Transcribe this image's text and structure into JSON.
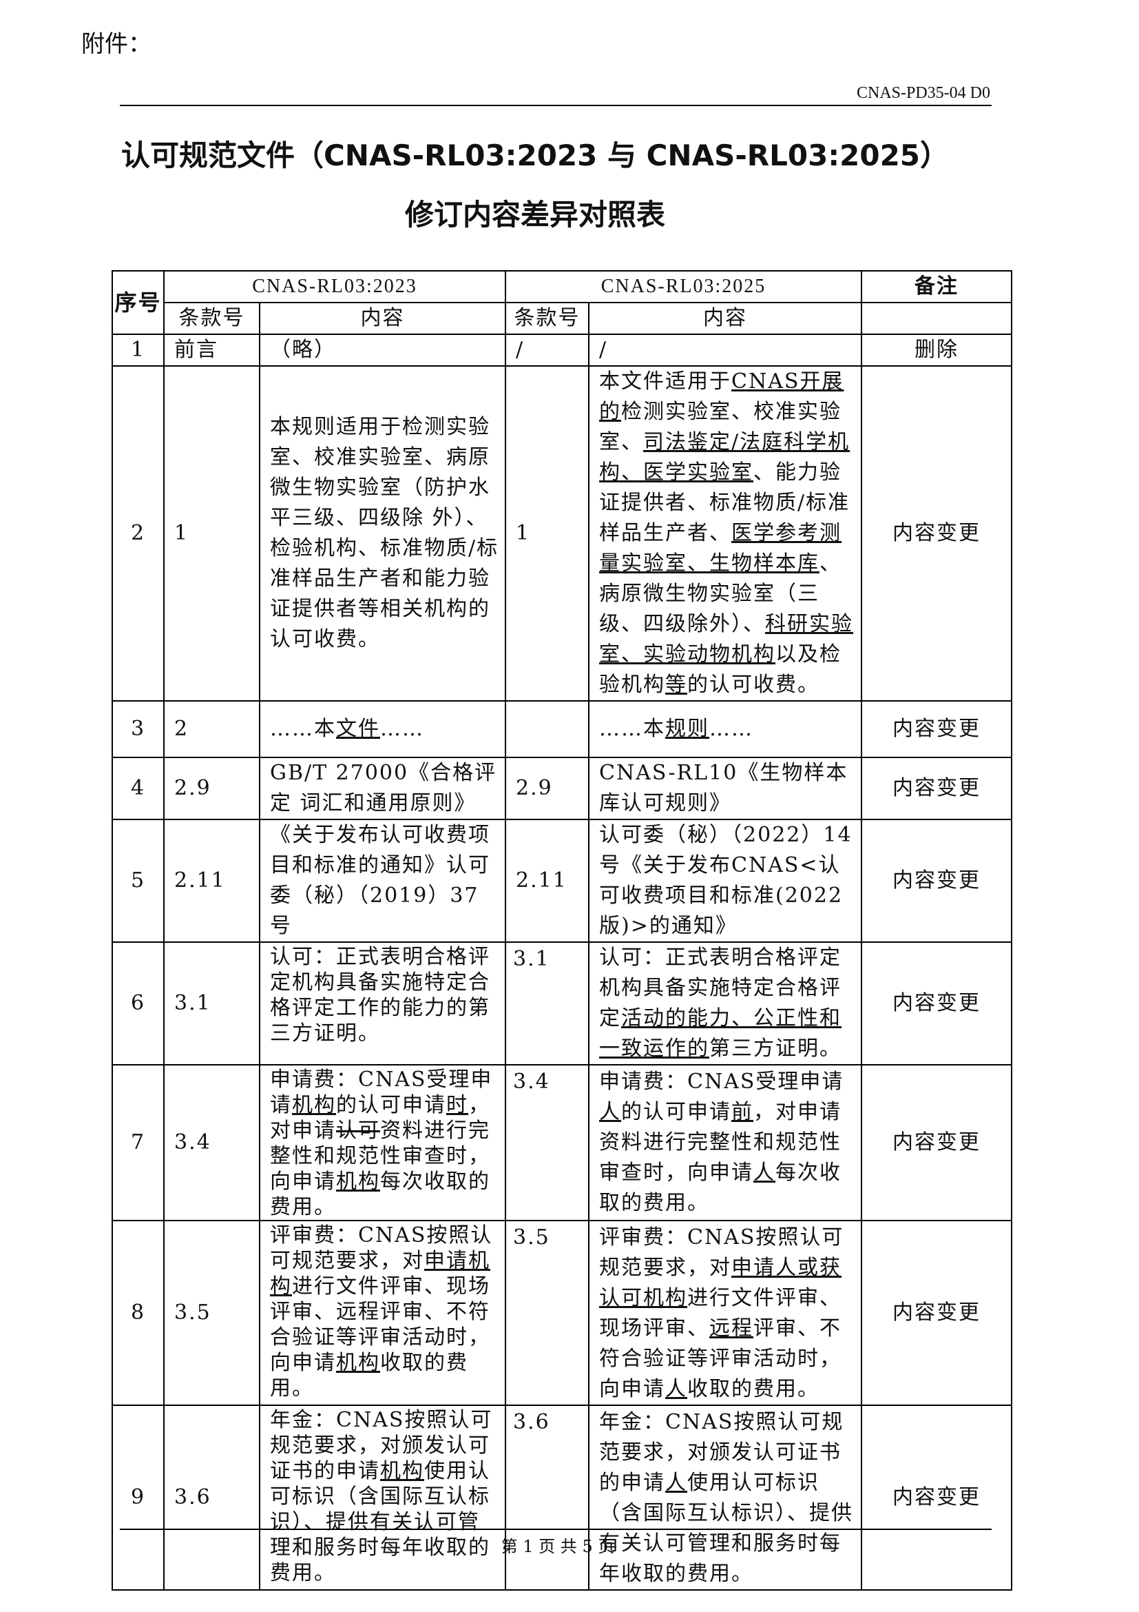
{
  "header": {
    "attachment_label": "附件：",
    "doc_id": "CNAS-PD35-04 D0"
  },
  "title": {
    "line1": "认可规范文件（CNAS-RL03:2023 与 CNAS-RL03:2025）",
    "line2": "修订内容差异对照表"
  },
  "table": {
    "headers": {
      "seq": "序号",
      "old_version": "CNAS-RL03:2023",
      "new_version": "CNAS-RL03:2025",
      "remark": "备注",
      "clause": "条款号",
      "content": "内容"
    },
    "rows": [
      {
        "seq": "1",
        "old_clause": "前言",
        "old": [
          {
            "t": "（略）"
          }
        ],
        "new_clause": "/",
        "new": [
          {
            "t": "/"
          }
        ],
        "remark": "删除"
      },
      {
        "seq": "2",
        "old_clause": "1",
        "old": [
          {
            "t": "本规则适用于检测实验室、校准实验室、病原微生物实验室（防护水平三级、四级除 外）、检验机构、标准物质/标准样品生产者和能力验证提供者等相关机构的认可收费。"
          }
        ],
        "new_clause": "1",
        "new": [
          {
            "t": "本文件适用于"
          },
          {
            "t": "CNAS开展的",
            "u": true
          },
          {
            "t": "检测实验室、校准实验室、"
          },
          {
            "t": "司法鉴定/法庭科学机构、医学实验室",
            "u": true
          },
          {
            "t": "、能力验证提供者、标准物质/标准样品生产者、"
          },
          {
            "t": "医学参考测量实验室、生物样本库",
            "u": true
          },
          {
            "t": "、病原微生物实验室（三级、四级除外）、"
          },
          {
            "t": "科研实验室、实验动物机构",
            "u": true
          },
          {
            "t": "以及检验机构"
          },
          {
            "t": "等",
            "u": true
          },
          {
            "t": "的认可收费。"
          }
        ],
        "remark": "内容变更"
      },
      {
        "seq": "3",
        "old_clause": "2",
        "old": [
          {
            "t": "……本"
          },
          {
            "t": "文件",
            "u": true
          },
          {
            "t": "……"
          }
        ],
        "new_clause": "",
        "new": [
          {
            "t": "……本"
          },
          {
            "t": "规则",
            "u": true
          },
          {
            "t": "……"
          }
        ],
        "remark": "内容变更"
      },
      {
        "seq": "4",
        "old_clause": "2.9",
        "old": [
          {
            "t": "GB/T 27000《合格评定 词汇和通用原则》"
          }
        ],
        "new_clause": "2.9",
        "new": [
          {
            "t": "CNAS-RL10《生物样本库认可规则》"
          }
        ],
        "remark": "内容变更"
      },
      {
        "seq": "5",
        "old_clause": "2.11",
        "old": [
          {
            "t": "《关于发布认可收费项目和标准的通知》认可委（秘）（2019）37号"
          }
        ],
        "new_clause": "2.11",
        "new": [
          {
            "t": "认可委（秘）（2022）14号《关于发布CNAS<认可收费项目和标准(2022版)>的通知》"
          }
        ],
        "remark": "内容变更"
      },
      {
        "seq": "6",
        "old_clause": "3.1",
        "old": [
          {
            "t": "认可：正式表明合格评定机构具备实施特定合格评定工作的能力的第三方证明。"
          }
        ],
        "new_clause": "3.1",
        "new": [
          {
            "t": "认可：正式表明合格评定机构具备实施特定合格评定"
          },
          {
            "t": "活动的能力、公正性和一致运作的",
            "u": true
          },
          {
            "t": "第三方证明。"
          }
        ],
        "remark": "内容变更"
      },
      {
        "seq": "7",
        "old_clause": "3.4",
        "old": [
          {
            "t": "申请费：CNAS受理申请"
          },
          {
            "t": "机构",
            "u": true
          },
          {
            "t": "的认可申请"
          },
          {
            "t": "时",
            "u": true
          },
          {
            "t": "，对申请"
          },
          {
            "t": "认可",
            "s": true
          },
          {
            "t": "资料进行完整性和规范性审查时，向申请"
          },
          {
            "t": "机构",
            "u": true
          },
          {
            "t": "每次收取的费用。"
          }
        ],
        "new_clause": "3.4",
        "new": [
          {
            "t": "申请费：CNAS受理申请"
          },
          {
            "t": "人",
            "u": true
          },
          {
            "t": "的认可申请"
          },
          {
            "t": "前",
            "u": true
          },
          {
            "t": "，对申请资料进行完整性和规范性审查时，向申请"
          },
          {
            "t": "人",
            "u": true
          },
          {
            "t": "每次收取的费用。"
          }
        ],
        "remark": "内容变更"
      },
      {
        "seq": "8",
        "old_clause": "3.5",
        "old": [
          {
            "t": "评审费：CNAS按照认可规范要求，对"
          },
          {
            "t": "申请机构",
            "u": true
          },
          {
            "t": "进行文件评审、现场评审、远程评审、不符合验证等评审活动时，向申请"
          },
          {
            "t": "机构",
            "u": true
          },
          {
            "t": "收取的费用。"
          }
        ],
        "new_clause": "3.5",
        "new": [
          {
            "t": "评审费：CNAS按照认可规范要求，对"
          },
          {
            "t": "申请人或获认可机构",
            "u": true
          },
          {
            "t": "进行文件评审、现场评审、"
          },
          {
            "t": "远程",
            "u": true
          },
          {
            "t": "评审、不符合验证等评审活动时，向申请"
          },
          {
            "t": "人",
            "u": true
          },
          {
            "t": "收取的费用。"
          }
        ],
        "remark": "内容变更"
      },
      {
        "seq": "9",
        "old_clause": "3.6",
        "old": [
          {
            "t": "年金：CNAS按照认可规范要求，对颁发认可证书的申请"
          },
          {
            "t": "机构",
            "u": true
          },
          {
            "t": "使用认可标识（含国际互认标识）、提供有关认可管理和服务时每年收取的费用。"
          }
        ],
        "new_clause": "3.6",
        "new": [
          {
            "t": "年金：CNAS按照认可规范要求，对颁发认可证书的申请"
          },
          {
            "t": "人",
            "u": true
          },
          {
            "t": "使用认可标识（含国际互认标识）、提供有关认可管理和服务时每年收取的费用。"
          }
        ],
        "remark": "内容变更"
      }
    ]
  },
  "footer": {
    "page_label": "第 1 页 共 5 页"
  }
}
